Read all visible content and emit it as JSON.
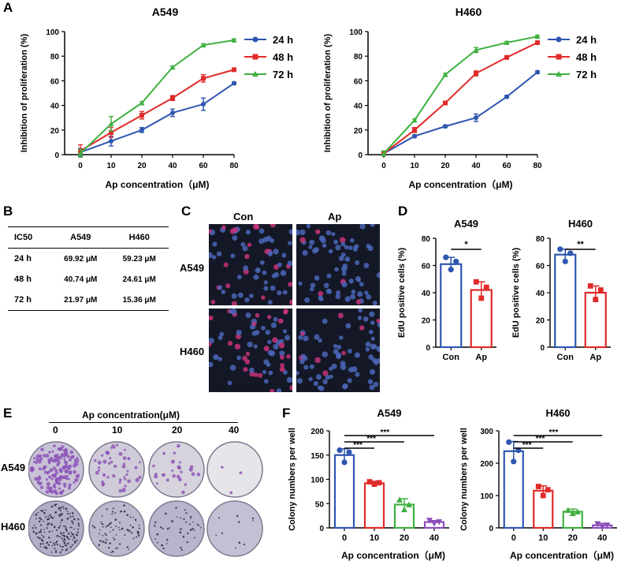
{
  "panel_letters": {
    "a": "A",
    "b": "B",
    "c": "C",
    "d": "D",
    "e": "E",
    "f": "F"
  },
  "colors": {
    "h24": "#2f56b0",
    "h48": "#e02b28",
    "h72": "#3fb03f",
    "ap4": "#8a4fb8"
  },
  "chart_data": [
    {
      "type": "line",
      "id": "A-A549",
      "title": "A549",
      "xlabel": "Ap concentration（μM)",
      "ylabel": "Inhibition of proliferation   (%)",
      "categories": [
        "0",
        "10",
        "20",
        "40",
        "60",
        "80"
      ],
      "ylim": [
        0,
        100
      ],
      "yticks": [
        "0",
        "20",
        "40",
        "60",
        "80",
        "100"
      ],
      "legend_position": "right",
      "series": [
        {
          "name": "24 h",
          "values": [
            2,
            11,
            20,
            34,
            41,
            58
          ],
          "err": [
            3,
            4,
            2,
            3,
            5,
            1
          ]
        },
        {
          "name": "48 h",
          "values": [
            3,
            18,
            32,
            46,
            62,
            69
          ],
          "err": [
            5,
            4,
            3,
            2,
            3,
            1
          ]
        },
        {
          "name": "72 h",
          "values": [
            1,
            25,
            42,
            71,
            89,
            93
          ],
          "err": [
            3,
            6,
            1,
            1,
            1,
            1
          ]
        }
      ]
    },
    {
      "type": "line",
      "id": "A-H460",
      "title": "H460",
      "xlabel": "Ap concentration（μM)",
      "ylabel": "Inhibition of proliferation   (%)",
      "categories": [
        "0",
        "10",
        "20",
        "40",
        "60",
        "80"
      ],
      "ylim": [
        0,
        100
      ],
      "yticks": [
        "0",
        "20",
        "40",
        "60",
        "80",
        "100"
      ],
      "legend_position": "right",
      "series": [
        {
          "name": "24 h",
          "values": [
            1,
            15,
            23,
            30,
            47,
            67
          ],
          "err": [
            2,
            1,
            1,
            3,
            1,
            1
          ]
        },
        {
          "name": "48 h",
          "values": [
            1,
            20,
            42,
            66,
            79,
            91
          ],
          "err": [
            2,
            2,
            1,
            2,
            1,
            1
          ]
        },
        {
          "name": "72 h",
          "values": [
            1,
            28,
            65,
            85,
            91,
            96
          ],
          "err": [
            2,
            1,
            1,
            2,
            1,
            1
          ]
        }
      ]
    },
    {
      "type": "table",
      "id": "B",
      "header": [
        "IC50",
        "A549",
        "H460"
      ],
      "rows": [
        [
          "24 h",
          "69.92 μM",
          "59.23 μM"
        ],
        [
          "48 h",
          "40.74 μM",
          "24.61 μM"
        ],
        [
          "72 h",
          "21.97 μM",
          "15.36 μM"
        ]
      ]
    },
    {
      "type": "bar",
      "id": "D-A549",
      "title": "A549",
      "ylabel": "EdU positive cells (%)",
      "categories": [
        "Con",
        "Ap"
      ],
      "values": [
        61,
        42
      ],
      "err": [
        5,
        6
      ],
      "ylim": [
        0,
        80
      ],
      "yticks": [
        "0",
        "20",
        "40",
        "60",
        "80"
      ],
      "points": [
        [
          66,
          57,
          63
        ],
        [
          48,
          36,
          44
        ]
      ],
      "sig": "*"
    },
    {
      "type": "bar",
      "id": "D-H460",
      "title": "H460",
      "ylabel": "EdU positive cells (%)",
      "categories": [
        "Con",
        "Ap"
      ],
      "values": [
        68,
        40
      ],
      "err": [
        4,
        5
      ],
      "ylim": [
        0,
        80
      ],
      "yticks": [
        "0",
        "20",
        "40",
        "60",
        "80"
      ],
      "points": [
        [
          72,
          63,
          69
        ],
        [
          45,
          35,
          42
        ]
      ],
      "sig": "**"
    },
    {
      "type": "bar",
      "id": "F-A549",
      "title": "A549",
      "ylabel": "Colony numbers per well",
      "xlabel": "Ap concentration（μM)",
      "categories": [
        "0",
        "10",
        "20",
        "40"
      ],
      "values": [
        150,
        92,
        48,
        12
      ],
      "err": [
        13,
        4,
        12,
        3
      ],
      "ylim": [
        0,
        200
      ],
      "yticks": [
        "0",
        "50",
        "100",
        "150",
        "200"
      ],
      "points": [
        [
          160,
          135,
          156
        ],
        [
          95,
          90,
          93
        ],
        [
          58,
          38,
          48
        ],
        [
          15,
          9,
          12
        ]
      ],
      "sig": [
        "***",
        "***",
        "***"
      ]
    },
    {
      "type": "bar",
      "id": "F-H460",
      "title": "H460",
      "ylabel": "Colony numbers per well",
      "xlabel": "Ap concentration（μM)",
      "categories": [
        "0",
        "10",
        "20",
        "40"
      ],
      "values": [
        237,
        115,
        50,
        8
      ],
      "err": [
        30,
        15,
        8,
        6
      ],
      "ylim": [
        0,
        300
      ],
      "yticks": [
        "0",
        "100",
        "200",
        "300"
      ],
      "points": [
        [
          265,
          205,
          240
        ],
        [
          128,
          100,
          118
        ],
        [
          55,
          45,
          50
        ],
        [
          12,
          3,
          8
        ]
      ],
      "sig": [
        "***",
        "***",
        "***"
      ]
    }
  ],
  "microscopy": {
    "col_labels": [
      "Con",
      "Ap"
    ],
    "row_labels": [
      "A549",
      "H460"
    ]
  },
  "colony": {
    "header": "Ap concentration(μM)",
    "col_labels": [
      "0",
      "10",
      "20",
      "40"
    ],
    "row_labels": [
      "A549",
      "H460"
    ]
  }
}
